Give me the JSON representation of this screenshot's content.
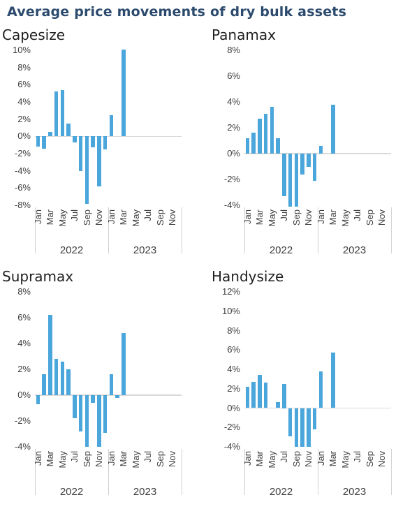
{
  "title": "Average price movements of dry bulk assets",
  "colors": {
    "bar": "#4AA6DB",
    "zero_line": "#D9D9D9",
    "separator_line": "#D0D0D0",
    "axis_text": "#404040",
    "chart_title_text": "#1F1F1F",
    "page_title_text": "#2B4A6D"
  },
  "x_axis": {
    "month_tick_labels": [
      "Jan",
      "Mar",
      "May",
      "Jul",
      "Sep",
      "Nov"
    ],
    "year_labels": [
      "2022",
      "2023"
    ],
    "months_per_year": 12
  },
  "chart_data": [
    {
      "type": "bar",
      "title": "Capesize",
      "ylim": [
        -8,
        10
      ],
      "ytick_step": 2,
      "ytick_suffix": "%",
      "categories": [
        "Jan 2022",
        "Feb 2022",
        "Mar 2022",
        "Apr 2022",
        "May 2022",
        "Jun 2022",
        "Jul 2022",
        "Aug 2022",
        "Sep 2022",
        "Oct 2022",
        "Nov 2022",
        "Dec 2022",
        "Jan 2023",
        "Feb 2023",
        "Mar 2023"
      ],
      "values": [
        -1.2,
        -1.4,
        0.5,
        5.2,
        5.4,
        1.5,
        -0.7,
        -4.0,
        -7.8,
        -1.3,
        -5.8,
        -1.5,
        2.5,
        0,
        10.1
      ]
    },
    {
      "type": "bar",
      "title": "Panamax",
      "ylim": [
        -4,
        8
      ],
      "ytick_step": 2,
      "ytick_suffix": "%",
      "categories": [
        "Jan 2022",
        "Feb 2022",
        "Mar 2022",
        "Apr 2022",
        "May 2022",
        "Jun 2022",
        "Jul 2022",
        "Aug 2022",
        "Sep 2022",
        "Oct 2022",
        "Nov 2022",
        "Dec 2022",
        "Jan 2023",
        "Feb 2023",
        "Mar 2023"
      ],
      "values": [
        1.2,
        1.6,
        2.7,
        3.1,
        3.6,
        1.2,
        -3.3,
        -4.1,
        -4.1,
        -1.6,
        -1.0,
        -2.1,
        0.6,
        0,
        3.8
      ]
    },
    {
      "type": "bar",
      "title": "Supramax",
      "ylim": [
        -4,
        8
      ],
      "ytick_step": 2,
      "ytick_suffix": "%",
      "categories": [
        "Jan 2022",
        "Feb 2022",
        "Mar 2022",
        "Apr 2022",
        "May 2022",
        "Jun 2022",
        "Jul 2022",
        "Aug 2022",
        "Sep 2022",
        "Oct 2022",
        "Nov 2022",
        "Dec 2022",
        "Jan 2023",
        "Feb 2023",
        "Mar 2023"
      ],
      "values": [
        -0.7,
        1.6,
        6.2,
        2.8,
        2.6,
        2.0,
        -1.8,
        -2.8,
        -4.0,
        -0.6,
        -4.0,
        -2.9,
        1.6,
        -0.2,
        4.8
      ]
    },
    {
      "type": "bar",
      "title": "Handysize",
      "ylim": [
        -4,
        12
      ],
      "ytick_step": 2,
      "ytick_suffix": "%",
      "categories": [
        "Jan 2022",
        "Feb 2022",
        "Mar 2022",
        "Apr 2022",
        "May 2022",
        "Jun 2022",
        "Jul 2022",
        "Aug 2022",
        "Sep 2022",
        "Oct 2022",
        "Nov 2022",
        "Dec 2022",
        "Jan 2023",
        "Feb 2023",
        "Mar 2023"
      ],
      "values": [
        2.2,
        2.7,
        3.4,
        2.6,
        0,
        0.6,
        2.5,
        -2.9,
        -4.0,
        -4.0,
        -4.0,
        -2.2,
        3.8,
        0,
        5.7
      ]
    }
  ]
}
